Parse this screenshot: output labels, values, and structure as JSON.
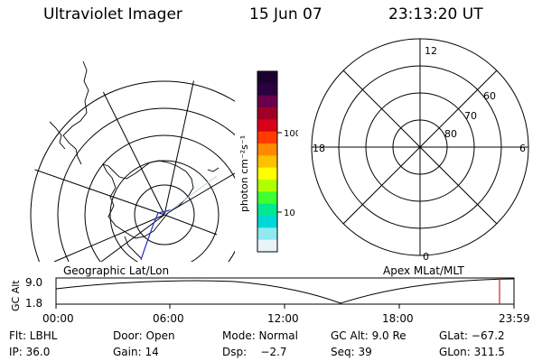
{
  "header": {
    "title": "Ultraviolet Imager",
    "date": "15 Jun 07",
    "time": "23:13:20 UT"
  },
  "colorbar": {
    "unit_label": "photon cm⁻²s⁻¹",
    "ticks": [
      "100",
      "10"
    ],
    "colors": [
      "#1b0030",
      "#2c0040",
      "#6a004a",
      "#a00025",
      "#d8001a",
      "#ff3c00",
      "#ff8a00",
      "#ffc000",
      "#ffff00",
      "#b0ff00",
      "#40ff30",
      "#00e890",
      "#00d8d8",
      "#90e8f0",
      "#e8f4f8"
    ]
  },
  "polar_plot": {
    "mlt_labels": {
      "top": "12",
      "left": "18",
      "right": "6",
      "bottom": "0"
    },
    "lat_labels": [
      "60",
      "70",
      "80"
    ]
  },
  "timeline": {
    "left_label": "Geographic Lat/Lon",
    "right_label": "Apex MLat/MLT",
    "axis_label": "GC Alt",
    "y_ticks": [
      "9.0",
      "1.8"
    ],
    "x_ticks": [
      "00:00",
      "06:00",
      "12:00",
      "18:00",
      "23:59"
    ]
  },
  "info": {
    "flt": "Flt: LBHL",
    "door": "Door: Open",
    "mode": "Mode: Normal",
    "gcalt": "GC Alt: 9.0 Re",
    "glat": "GLat: −67.2",
    "ip": "IP: 36.0",
    "gain": "Gain: 14",
    "dsp": "Dsp:    −2.7",
    "seq": "Seq: 39",
    "glon": "GLon: 311.5"
  }
}
